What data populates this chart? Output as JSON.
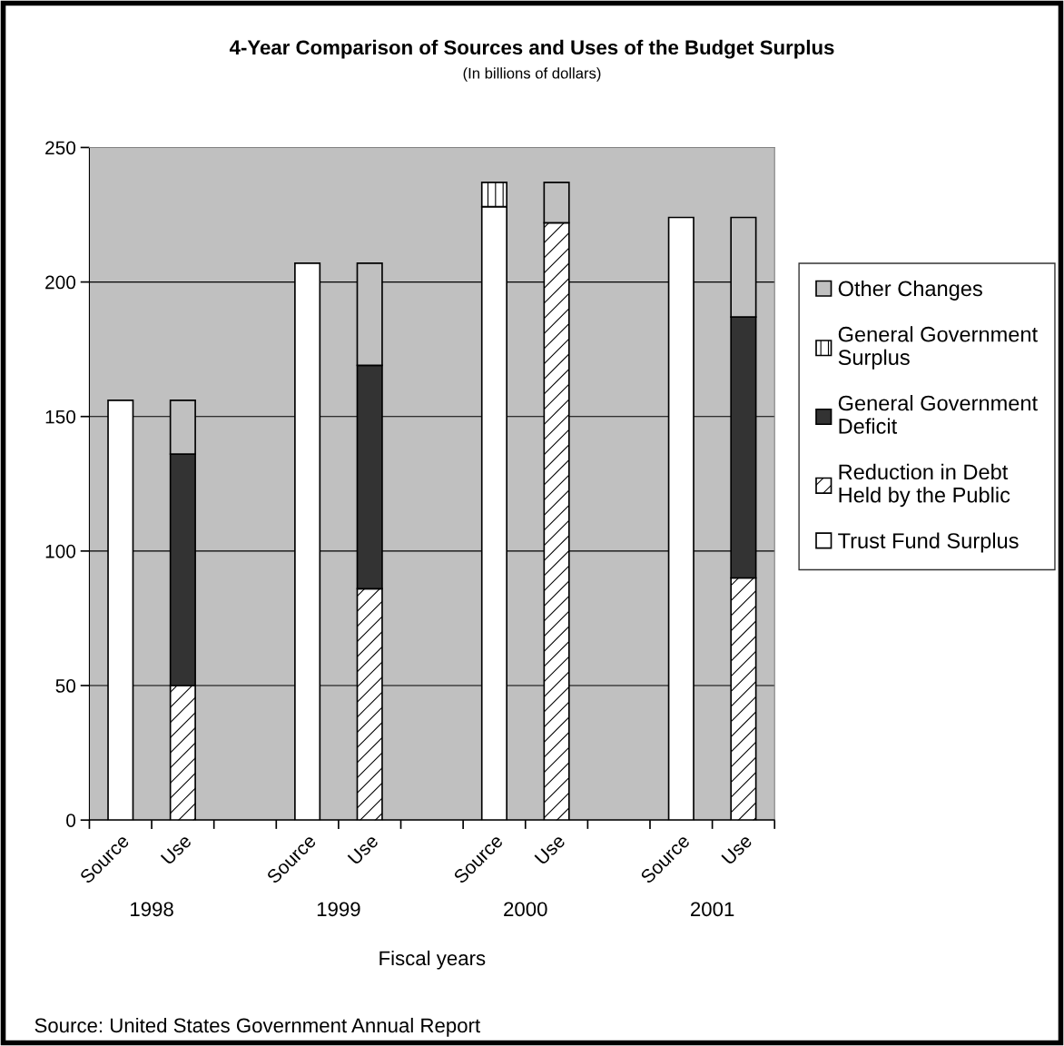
{
  "chart_data": {
    "type": "bar",
    "title": "4-Year Comparison of Sources and Uses of the Budget Surplus",
    "subtitle": "(In billions of dollars)",
    "xlabel": "Fiscal years",
    "categories": [
      "Source",
      "Use",
      null,
      "Source",
      "Use",
      null,
      "Source",
      "Use",
      null,
      "Source",
      "Use"
    ],
    "series": [
      {
        "name": "Trust Fund Surplus",
        "color": "#ffffff",
        "values": [
          156,
          null,
          null,
          207,
          null,
          null,
          228,
          null,
          null,
          224,
          null
        ]
      },
      {
        "name": "Reduction in Debt Held by the Public",
        "color": "#000000",
        "values": [
          null,
          50,
          null,
          null,
          86,
          null,
          null,
          222,
          null,
          null,
          90
        ]
      },
      {
        "name": "General Government Deficit",
        "color": "#333333",
        "values": [
          null,
          86,
          null,
          null,
          83,
          null,
          null,
          null,
          null,
          null,
          97
        ]
      },
      {
        "name": "General Government Surplus",
        "color": "#000000",
        "values": [
          null,
          null,
          null,
          null,
          null,
          null,
          9,
          null,
          null,
          null,
          null
        ]
      },
      {
        "name": "Other Changes",
        "color": "#c0c0c0",
        "values": [
          null,
          20,
          null,
          null,
          38,
          null,
          null,
          15,
          null,
          null,
          37
        ]
      }
    ],
    "stacked": true,
    "ylim": [
      0,
      250
    ],
    "yticks": [
      0,
      50,
      100,
      150,
      200,
      250
    ],
    "grid": "y",
    "legend": "right",
    "annotations": [
      "1998",
      "1999",
      "2000",
      "2001",
      "Source: United States Government Annual Report"
    ]
  }
}
